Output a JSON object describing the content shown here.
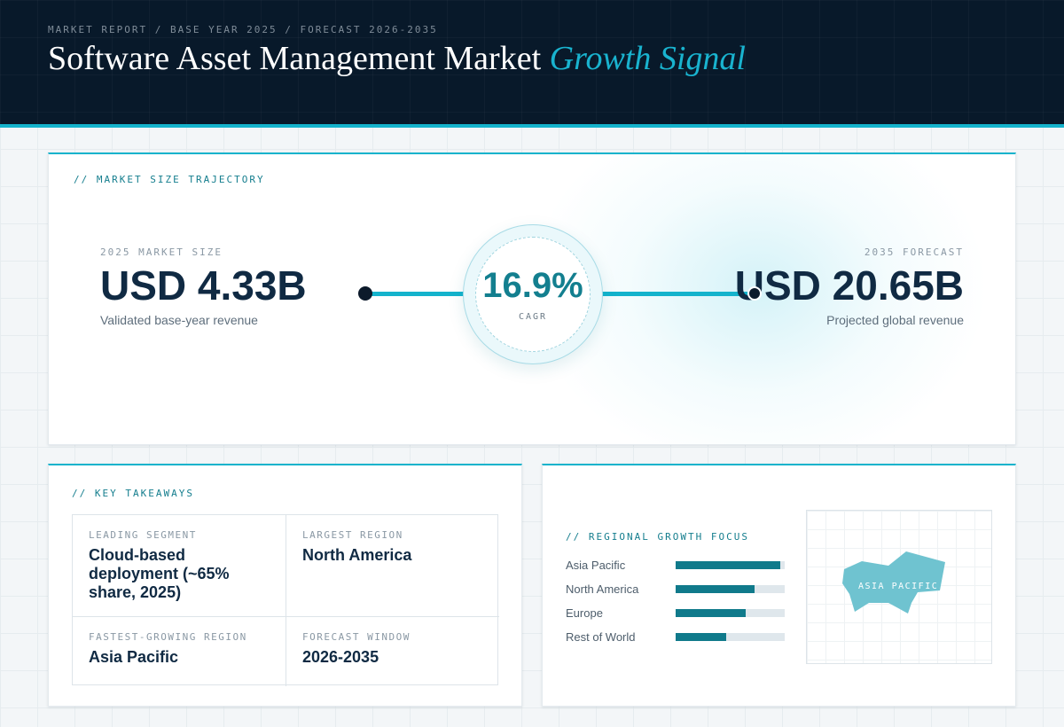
{
  "header": {
    "eyebrow": "MARKET REPORT / BASE YEAR 2025 / FORECAST 2026-2035",
    "title_main": "Software Asset Management Market",
    "title_accent": "Growth Signal"
  },
  "trajectory": {
    "label": "// MARKET SIZE TRAJECTORY",
    "base": {
      "label": "2025 MARKET SIZE",
      "value": "USD 4.33B",
      "sub": "Validated base-year revenue"
    },
    "cagr": {
      "value": "16.9%",
      "label": "CAGR"
    },
    "forecast": {
      "label": "2035 FORECAST",
      "value": "USD 20.65B",
      "sub": "Projected global revenue"
    }
  },
  "takeaways": {
    "label": "// KEY TAKEAWAYS",
    "cells": [
      {
        "label": "LEADING SEGMENT",
        "value": "Cloud-based deployment (~65% share, 2025)"
      },
      {
        "label": "LARGEST REGION",
        "value": "North America"
      },
      {
        "label": "FASTEST-GROWING REGION",
        "value": "Asia Pacific"
      },
      {
        "label": "FORECAST WINDOW",
        "value": "2026-2035"
      }
    ]
  },
  "regional": {
    "label": "// REGIONAL GROWTH FOCUS",
    "bars": [
      {
        "name": "Asia Pacific",
        "fraction": 0.96
      },
      {
        "name": "North America",
        "fraction": 0.72
      },
      {
        "name": "Europe",
        "fraction": 0.64
      },
      {
        "name": "Rest of World",
        "fraction": 0.46
      }
    ],
    "map_label": "ASIA PACIFIC"
  },
  "colors": {
    "accent": "#14b3cc",
    "bar_fill": "#107a8b",
    "header_bg": "#08192a",
    "map_shape": "#6fc3d0"
  }
}
